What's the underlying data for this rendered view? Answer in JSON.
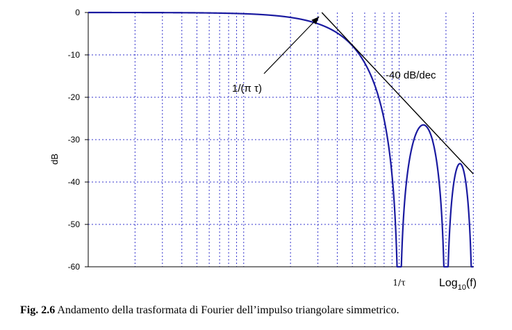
{
  "chart_data": {
    "type": "line",
    "title": "",
    "ylabel": "dB",
    "xlabel_base": "Log",
    "xlabel_sub": "10",
    "xlabel_arg": "(f)",
    "ylim": [
      -60,
      0
    ],
    "yticks": [
      0,
      -10,
      -20,
      -30,
      -40,
      -50,
      -60
    ],
    "ytick_labels": [
      "0",
      "-10",
      "-20",
      "-30",
      "-40",
      "-50",
      "-60"
    ],
    "grid": true,
    "x_scale": "log",
    "xlim_decades": [
      -2,
      0.48
    ],
    "xtick_labels": [
      {
        "label": "1/τ",
        "x": 1.0
      }
    ],
    "series": [
      {
        "color": "#1a1aa0",
        "formula": "20*log10(|sinc(f*tau)|^2)",
        "x_range": [
          0.01,
          3.0
        ],
        "zeros_at": [
          1,
          2,
          3
        ]
      },
      {
        "color": "#000000",
        "formula": "asymptote -40 dB/dec from 1/(pi*tau)",
        "x": [
          0.318,
          3.0
        ],
        "y": [
          0,
          -38.1
        ]
      }
    ],
    "annotations": {
      "corner": "1/(π τ)",
      "slope": "-40 dB/dec"
    }
  },
  "caption": {
    "label": "Fig. 2.6",
    "text": " Andamento della trasformata di Fourier dell’impulso triangolare simmetrico."
  }
}
